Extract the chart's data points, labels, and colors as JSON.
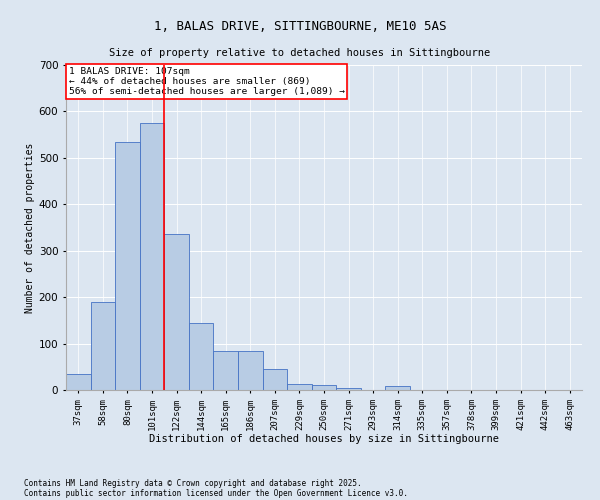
{
  "title1": "1, BALAS DRIVE, SITTINGBOURNE, ME10 5AS",
  "title2": "Size of property relative to detached houses in Sittingbourne",
  "xlabel": "Distribution of detached houses by size in Sittingbourne",
  "ylabel": "Number of detached properties",
  "categories": [
    "37sqm",
    "58sqm",
    "80sqm",
    "101sqm",
    "122sqm",
    "144sqm",
    "165sqm",
    "186sqm",
    "207sqm",
    "229sqm",
    "250sqm",
    "271sqm",
    "293sqm",
    "314sqm",
    "335sqm",
    "357sqm",
    "378sqm",
    "399sqm",
    "421sqm",
    "442sqm",
    "463sqm"
  ],
  "values": [
    35,
    190,
    535,
    575,
    335,
    145,
    85,
    85,
    45,
    13,
    10,
    5,
    0,
    8,
    0,
    0,
    0,
    0,
    0,
    0,
    0
  ],
  "bar_color": "#b8cce4",
  "bar_edge_color": "#4472c4",
  "background_color": "#dce6f1",
  "vline_x": 3.5,
  "vline_color": "red",
  "annotation_title": "1 BALAS DRIVE: 107sqm",
  "annotation_line1": "← 44% of detached houses are smaller (869)",
  "annotation_line2": "56% of semi-detached houses are larger (1,089) →",
  "annotation_box_color": "white",
  "annotation_box_edge": "red",
  "ylim": [
    0,
    700
  ],
  "yticks": [
    0,
    100,
    200,
    300,
    400,
    500,
    600,
    700
  ],
  "footer1": "Contains HM Land Registry data © Crown copyright and database right 2025.",
  "footer2": "Contains public sector information licensed under the Open Government Licence v3.0."
}
